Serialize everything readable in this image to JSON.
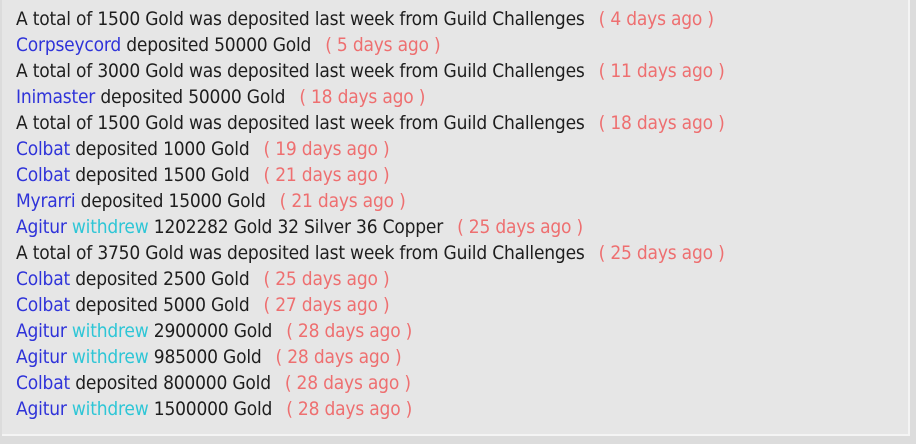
{
  "colors": {
    "player": "#2f33d9",
    "withdraw": "#2ec6d6",
    "time": "#ee6f70",
    "text": "#1e1e1e",
    "background": "#e6e6e6"
  },
  "log": [
    {
      "type": "challenge",
      "text": "A total of 1500 Gold was deposited last week from Guild Challenges",
      "time": "( 4 days ago )"
    },
    {
      "type": "deposit",
      "player": "Corpseycord",
      "action": "deposited",
      "amount": "50000 Gold",
      "time": "( 5 days ago )"
    },
    {
      "type": "challenge",
      "text": "A total of 3000 Gold was deposited last week from Guild Challenges",
      "time": "( 11 days ago )"
    },
    {
      "type": "deposit",
      "player": "Inimaster",
      "action": "deposited",
      "amount": "50000 Gold",
      "time": "( 18 days ago )"
    },
    {
      "type": "challenge",
      "text": "A total of 1500 Gold was deposited last week from Guild Challenges",
      "time": "( 18 days ago )"
    },
    {
      "type": "deposit",
      "player": "Colbat",
      "action": "deposited",
      "amount": "1000 Gold",
      "time": "( 19 days ago )"
    },
    {
      "type": "deposit",
      "player": "Colbat",
      "action": "deposited",
      "amount": "1500 Gold",
      "time": "( 21 days ago )"
    },
    {
      "type": "deposit",
      "player": "Myrarri",
      "action": "deposited",
      "amount": "15000 Gold",
      "time": "( 21 days ago )"
    },
    {
      "type": "withdraw",
      "player": "Agitur",
      "action": "withdrew",
      "amount": "1202282 Gold 32 Silver 36 Copper",
      "time": "( 25 days ago )"
    },
    {
      "type": "challenge",
      "text": "A total of 3750 Gold was deposited last week from Guild Challenges",
      "time": "( 25 days ago )"
    },
    {
      "type": "deposit",
      "player": "Colbat",
      "action": "deposited",
      "amount": "2500 Gold",
      "time": "( 25 days ago )"
    },
    {
      "type": "deposit",
      "player": "Colbat",
      "action": "deposited",
      "amount": "5000 Gold",
      "time": "( 27 days ago )"
    },
    {
      "type": "withdraw",
      "player": "Agitur",
      "action": "withdrew",
      "amount": "2900000 Gold",
      "time": "( 28 days ago )"
    },
    {
      "type": "withdraw",
      "player": "Agitur",
      "action": "withdrew",
      "amount": "985000 Gold",
      "time": "( 28 days ago )"
    },
    {
      "type": "deposit",
      "player": "Colbat",
      "action": "deposited",
      "amount": "800000 Gold",
      "time": "( 28 days ago )"
    },
    {
      "type": "withdraw",
      "player": "Agitur",
      "action": "withdrew",
      "amount": "1500000 Gold",
      "time": "( 28 days ago )"
    }
  ]
}
